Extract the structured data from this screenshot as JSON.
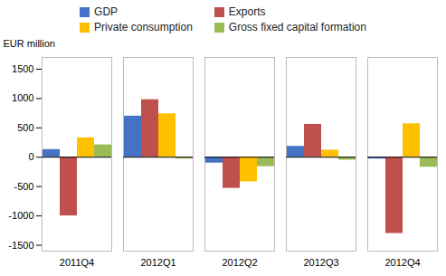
{
  "chart_data": {
    "type": "bar",
    "categories": [
      "2011Q4",
      "2012Q1",
      "2012Q2",
      "2012Q3",
      "2012Q4"
    ],
    "series": [
      {
        "name": "GDP",
        "color": "#4472C4",
        "values": [
          130,
          700,
          -100,
          185,
          -30
        ]
      },
      {
        "name": "Exports",
        "color": "#C0504D",
        "values": [
          -1000,
          980,
          -530,
          560,
          -1300
        ]
      },
      {
        "name": "Private consumption",
        "color": "#FFC000",
        "values": [
          330,
          740,
          -420,
          120,
          570
        ]
      },
      {
        "name": "Gross fixed capital formation",
        "color": "#9BBB59",
        "values": [
          210,
          -30,
          -160,
          -50,
          -170
        ]
      }
    ],
    "ylabel": "EUR million",
    "ylim": [
      -1600,
      1700
    ],
    "yticks": [
      -1500,
      -1000,
      -500,
      0,
      500,
      1000,
      1500
    ],
    "legend": "top",
    "grid": false
  }
}
